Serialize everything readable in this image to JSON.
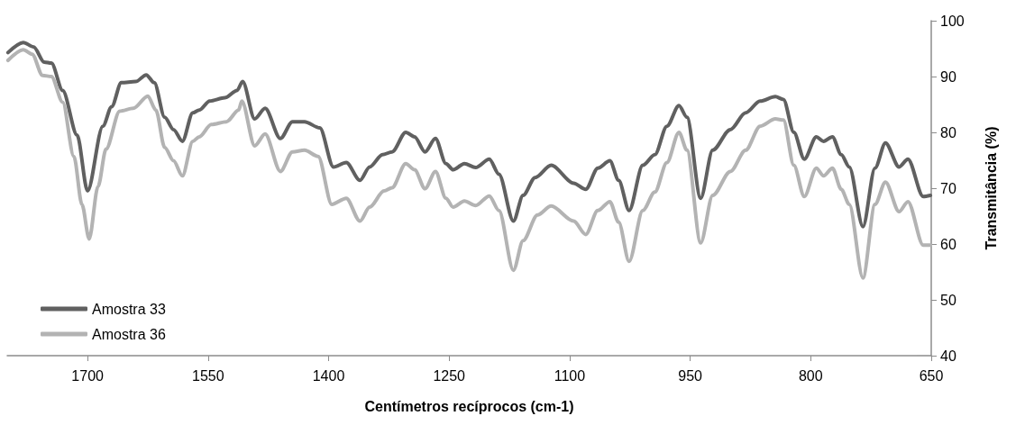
{
  "chart_data": {
    "type": "line",
    "xlabel": "Centímetros recíprocos (cm-1)",
    "ylabel": "Transmitância (%)",
    "xlim": [
      1800,
      650
    ],
    "xticks": [
      1700,
      1550,
      1400,
      1250,
      1100,
      950,
      800,
      650
    ],
    "ylim": [
      40,
      100
    ],
    "yticks": [
      40,
      50,
      60,
      70,
      80,
      90,
      100
    ],
    "grid": false,
    "legend": "bottom left",
    "marker": "none",
    "line_style": "solid",
    "series": [
      {
        "name": "Amostra 33",
        "color": "#606060",
        "x": [
          1799,
          1780,
          1767,
          1754,
          1745,
          1731,
          1713,
          1700,
          1681,
          1670,
          1658,
          1640,
          1627,
          1617,
          1604,
          1593,
          1582,
          1569,
          1561,
          1548,
          1529,
          1514,
          1507,
          1492,
          1479,
          1460,
          1445,
          1430,
          1411,
          1394,
          1378,
          1361,
          1349,
          1333,
          1321,
          1304,
          1293,
          1280,
          1267,
          1254,
          1245,
          1231,
          1217,
          1200,
          1188,
          1170,
          1158,
          1143,
          1123,
          1095,
          1080,
          1065,
          1050,
          1039,
          1026,
          1009,
          994,
          979,
          964,
          954,
          937,
          922,
          900,
          881,
          863,
          844,
          834,
          821,
          808,
          793,
          784,
          773,
          762,
          752,
          735,
          720,
          707,
          690,
          679,
          660,
          651
        ],
        "values": [
          94.3,
          96.1,
          95.3,
          92.6,
          92.4,
          87.5,
          79.5,
          69.5,
          81.1,
          84.6,
          88.9,
          89.1,
          90.3,
          88.9,
          82.7,
          80.5,
          78.4,
          83.5,
          84,
          85.6,
          86.2,
          87.5,
          89.1,
          82.4,
          84.3,
          78.9,
          81.9,
          81.9,
          80.8,
          73.8,
          74.6,
          71.4,
          73.8,
          76,
          76.5,
          80,
          79.2,
          76.5,
          78.9,
          74.4,
          73.3,
          74.4,
          73.7,
          75.2,
          72.5,
          64.1,
          68.7,
          71.9,
          74.1,
          70.9,
          69.8,
          73.6,
          74.9,
          71.4,
          66,
          74.1,
          76,
          81.1,
          84.8,
          82.7,
          68.2,
          76.8,
          80.5,
          83.5,
          85.6,
          86.4,
          85.9,
          80,
          75.2,
          79.2,
          78.4,
          79.2,
          76,
          73.8,
          63.1,
          73.6,
          78.1,
          73.8,
          75.2,
          68.5,
          68.7
        ]
      },
      {
        "name": "Amostra 36",
        "color": "#b3b3b3",
        "x": [
          1799,
          1780,
          1769,
          1756,
          1745,
          1731,
          1717,
          1707,
          1698,
          1687,
          1677,
          1660,
          1643,
          1625,
          1615,
          1604,
          1593,
          1582,
          1569,
          1561,
          1546,
          1527,
          1512,
          1508,
          1492,
          1479,
          1460,
          1445,
          1430,
          1413,
          1396,
          1378,
          1361,
          1349,
          1331,
          1321,
          1304,
          1293,
          1280,
          1267,
          1254,
          1245,
          1231,
          1217,
          1200,
          1188,
          1170,
          1158,
          1140,
          1123,
          1095,
          1080,
          1065,
          1050,
          1039,
          1026,
          1009,
          994,
          979,
          964,
          954,
          937,
          922,
          900,
          881,
          863,
          844,
          834,
          821,
          808,
          793,
          784,
          773,
          762,
          752,
          735,
          720,
          707,
          690,
          679,
          660,
          651
        ],
        "values": [
          92.9,
          94.8,
          94,
          90.2,
          90,
          85.4,
          75.7,
          67.1,
          60.9,
          70.3,
          77,
          83.8,
          84.3,
          86.5,
          84,
          77.3,
          74.9,
          72.2,
          78.4,
          79.2,
          81.4,
          81.9,
          84,
          85.6,
          77.6,
          79.7,
          73,
          76.5,
          76.8,
          75.7,
          67.1,
          68.2,
          64.1,
          66.6,
          69.5,
          70.1,
          74.4,
          73.3,
          69.9,
          73,
          68.2,
          66.6,
          67.7,
          66.9,
          68.6,
          66,
          55.3,
          60.6,
          65.2,
          66.8,
          64.1,
          61.7,
          66,
          67.6,
          63.9,
          56.9,
          66,
          69.3,
          74.6,
          80,
          76.8,
          60.2,
          68.7,
          73,
          76.8,
          81.1,
          82.4,
          82.2,
          74.1,
          68.5,
          73.6,
          72.2,
          73.6,
          69.8,
          67.1,
          53.9,
          67.1,
          71.1,
          65.8,
          67.6,
          59.8,
          59.8
        ]
      }
    ]
  }
}
